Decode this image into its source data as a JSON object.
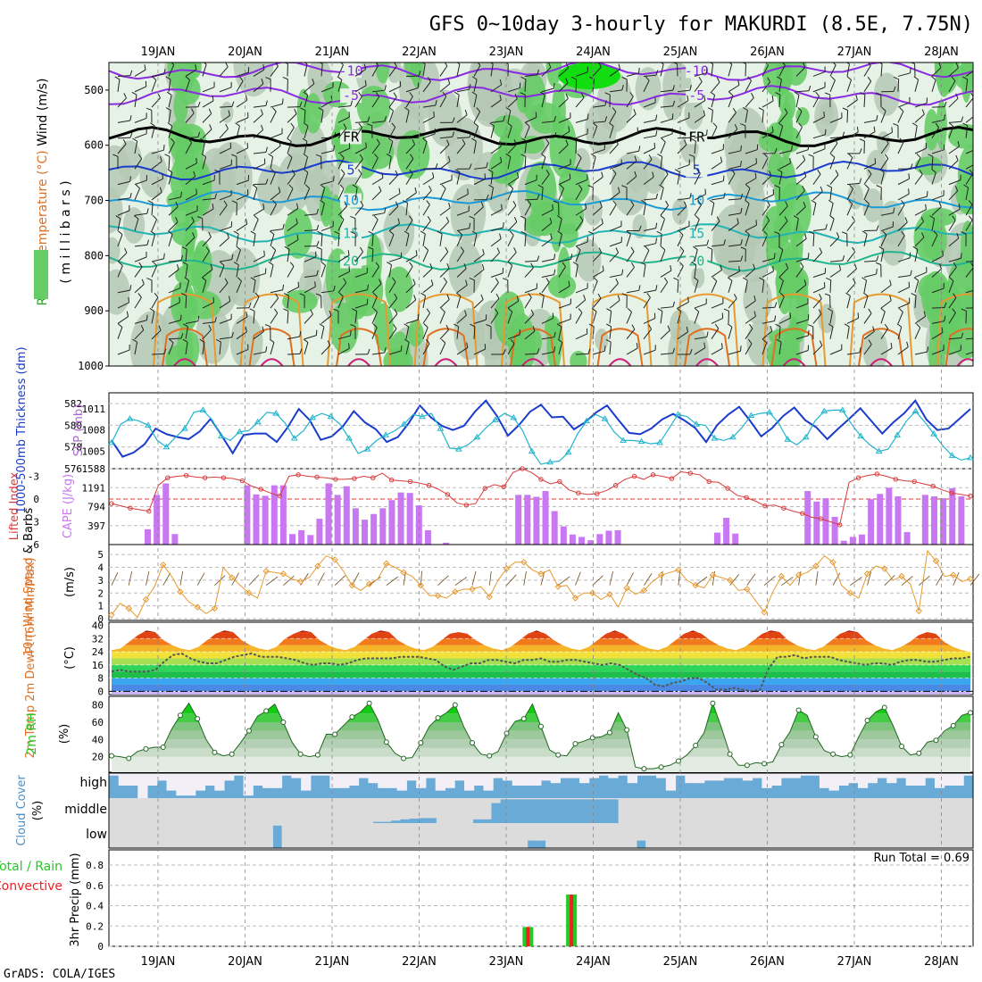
{
  "title": "GFS 0~10day 3-hourly for MAKURDI (8.5E, 7.75N)",
  "footer": "GrADS: COLA/IGES",
  "days": [
    "19JAN",
    "20JAN",
    "21JAN",
    "22JAN",
    "23JAN",
    "24JAN",
    "25JAN",
    "26JAN",
    "27JAN",
    "28JAN"
  ],
  "colors": {
    "wind_rh_bg": "#e6f2e6",
    "rh_mid": "#b4c8b4",
    "rh_high": "#66cc66",
    "rh_top": "#11dd11",
    "slp": "#1a3ccc",
    "thickness": "#22b4cc",
    "lifted": "#d83a3a",
    "cape": "#c878f0",
    "wind10": "#e69a30",
    "dewpt": "#555555",
    "rh2m": "#22cc22",
    "cloud": "#6aaad6",
    "cloud_gap": "#f2f0f6",
    "precip_total": "#22cc22",
    "precip_conv": "#ee2222"
  },
  "chart_data": [
    {
      "type": "heatmap",
      "name": "upper-air",
      "ylabel_parts": [
        {
          "text": "RH (%)",
          "color": "#22aa22"
        },
        {
          "text": "Temperature (°C)",
          "color": "#e07020"
        },
        {
          "text": "Wind (m/s)",
          "color": "#000000"
        }
      ],
      "ylabel2": "( m i l l i b a r s )",
      "yticks": [
        500,
        600,
        700,
        800,
        900,
        1000
      ],
      "ylim": [
        450,
        1000
      ],
      "isotherms": [
        {
          "label": "-10",
          "p": 465,
          "color": "#8a2be2"
        },
        {
          "label": "-5",
          "p": 510,
          "color": "#8a2be2"
        },
        {
          "label": "FR",
          "p": 585,
          "color": "#000000"
        },
        {
          "label": "5",
          "p": 645,
          "color": "#1a3ccc"
        },
        {
          "label": "10",
          "p": 700,
          "color": "#1a9ad6"
        },
        {
          "label": "15",
          "p": 760,
          "color": "#22b4b4"
        },
        {
          "label": "20",
          "p": 810,
          "color": "#22b48c"
        }
      ]
    },
    {
      "type": "line",
      "name": "slp-thickness",
      "ylabel_left": "1000-500mb Thickness (dm)",
      "ylabel_right": "SLP (mb)",
      "yticks_left": [
        576,
        578,
        580,
        582
      ],
      "yticks_right": [
        1005,
        1008,
        1011
      ],
      "ylim_left": [
        576,
        583
      ],
      "ylim_right": [
        1002.5,
        1013.3
      ],
      "series": [
        {
          "name": "SLP (mb)",
          "axis": "right",
          "values": [
            1006.5,
            1004.2,
            1004.8,
            1006.0,
            1008.2,
            1007.4,
            1007.0,
            1006.7,
            1007.8,
            1009.6,
            1007.2,
            1004.7,
            1007.3,
            1007.5,
            1007.5,
            1006.3,
            1008.4,
            1011.0,
            1009.4,
            1006.6,
            1007.1,
            1008.5,
            1010.7,
            1009.1,
            1008.1,
            1006.3,
            1007.0,
            1009.0,
            1011.5,
            1009.8,
            1008.6,
            1008.0,
            1008.6,
            1010.6,
            1012.2,
            1010.0,
            1007.2,
            1008.7,
            1010.6,
            1011.6,
            1009.8,
            1009.9,
            1008.1,
            1009.1,
            1010.5,
            1011.5,
            1009.5,
            1007.6,
            1007.4,
            1008.2,
            1009.5,
            1010.3,
            1009.4,
            1008.3,
            1006.3,
            1008.7,
            1010.2,
            1011.3,
            1009.3,
            1007.1,
            1008.3,
            1010.0,
            1011.2,
            1009.4,
            1008.4,
            1006.7,
            1008.2,
            1009.6,
            1011.1,
            1009.3,
            1007.5,
            1009.1,
            1010.4,
            1012.2,
            1009.5,
            1008.0,
            1008.2,
            1009.6,
            1011.0
          ]
        },
        {
          "name": "Thickness (dm)",
          "axis": "left",
          "values": [
            578.4,
            580.1,
            580.6,
            580.4,
            580.0,
            578.6,
            578.0,
            578.9,
            579.7,
            581.2,
            581.4,
            580.5,
            579.0,
            578.6,
            579.4,
            579.5,
            580.3,
            581.2,
            581.1,
            580.2,
            578.8,
            579.5,
            580.7,
            581.1,
            580.8,
            580.1,
            578.8,
            577.4,
            577.8,
            578.6,
            579.1,
            579.5,
            580.1,
            581.0,
            580.8,
            581.1,
            579.7,
            577.9,
            577.8,
            578.2,
            578.9,
            579.8,
            580.5,
            581.1,
            580.7,
            579.5,
            577.6,
            576.4,
            576.6,
            576.7,
            577.5,
            579.2,
            580.4,
            581.0,
            580.6,
            579.4,
            578.6,
            578.6,
            578.5,
            578.3,
            578.4,
            579.7,
            581.0,
            580.8,
            580.1,
            580.0,
            578.8,
            578.6,
            578.9,
            579.8,
            580.9,
            581.1,
            581.2,
            580.2,
            578.7,
            578.2,
            578.9,
            580.4,
            581.3,
            581.4,
            581.4,
            580.1,
            579.0,
            578.2,
            577.6,
            577.8,
            579.1,
            580.4,
            581.3,
            580.3,
            579.2,
            578.1,
            577.2,
            576.8,
            577.0
          ]
        }
      ]
    },
    {
      "type": "bar",
      "name": "cape-lifted-index",
      "ylabel_left": "Lifted Index",
      "ylabel_right": "CAPE (J/kg)",
      "yticks_left": [
        -3,
        0,
        3,
        6
      ],
      "yticks_right": [
        397,
        794,
        1191,
        1588
      ],
      "ylim_cape": [
        0,
        1588
      ],
      "ylim_li": [
        6,
        -4
      ],
      "cape": [
        0,
        0,
        0,
        0,
        320,
        1040,
        1280,
        220,
        0,
        0,
        0,
        0,
        0,
        0,
        0,
        1240,
        1050,
        1020,
        1240,
        1240,
        220,
        300,
        200,
        540,
        1280,
        1040,
        1220,
        760,
        520,
        640,
        760,
        930,
        1090,
        1080,
        820,
        300,
        0,
        40,
        0,
        0,
        0,
        0,
        0,
        0,
        0,
        1040,
        1040,
        1000,
        1120,
        700,
        380,
        210,
        160,
        90,
        220,
        290,
        300,
        0,
        0,
        0,
        0,
        0,
        0,
        0,
        0,
        0,
        0,
        250,
        560,
        230,
        0,
        0,
        0,
        0,
        0,
        0,
        0,
        1120,
        900,
        970,
        580,
        80,
        160,
        210,
        950,
        1060,
        1190,
        1010,
        260,
        0,
        1040,
        1010,
        970,
        1180,
        1010,
        0
      ],
      "lifted_index": [
        0.6,
        0.9,
        1.2,
        1.4,
        1.6,
        -1.8,
        -2.8,
        -3.0,
        -3.1,
        -2.9,
        -2.8,
        -2.9,
        -2.8,
        -2.7,
        -2.4,
        -1.7,
        -1.3,
        -0.8,
        -0.4,
        -3.0,
        -3.2,
        -3.0,
        -2.9,
        -2.8,
        -2.6,
        -2.6,
        -2.7,
        -3.0,
        -2.8,
        -3.4,
        -2.5,
        -2.4,
        -2.3,
        -2.1,
        -1.8,
        -1.3,
        -0.6,
        0.5,
        0.8,
        0.6,
        -1.4,
        -1.9,
        -1.6,
        -3.5,
        -4.0,
        -3.5,
        -2.6,
        -2.0,
        -2.3,
        -1.2,
        -0.8,
        -0.6,
        -0.7,
        -1.1,
        -1.8,
        -2.6,
        -3.0,
        -2.6,
        -3.2,
        -3.0,
        -2.7,
        -3.6,
        -3.4,
        -3.2,
        -2.3,
        -2.2,
        -1.4,
        -0.5,
        -0.2,
        0.3,
        0.9,
        0.8,
        1.2,
        1.6,
        1.9,
        2.4,
        2.6,
        3.0,
        3.4,
        -2.2,
        -2.8,
        -3.1,
        -3.3,
        -3.0,
        -2.6,
        -2.4,
        -2.3,
        -2.0,
        -1.7,
        -1.2,
        -0.8,
        -0.6,
        -0.4
      ]
    },
    {
      "type": "line",
      "name": "wind10m",
      "ylabel_parts": [
        {
          "text": "10m Wind",
          "color": "#e07020"
        },
        {
          "text": "Speed",
          "color": "#e07020"
        },
        {
          "text": "& Barbs",
          "color": "#000000"
        }
      ],
      "yunit": "(m/s)",
      "yticks": [
        0,
        1,
        2,
        3,
        4,
        5
      ],
      "ylim": [
        0,
        5.5
      ],
      "values": [
        0.3,
        1.2,
        0.8,
        0.1,
        1.5,
        2.5,
        4.2,
        3.3,
        2.1,
        1.3,
        0.9,
        0.4,
        0.8,
        4.0,
        3.2,
        2.6,
        2.0,
        1.6,
        3.7,
        3.6,
        3.5,
        3.1,
        2.9,
        3.2,
        4.1,
        4.9,
        4.6,
        3.7,
        2.6,
        2.2,
        2.7,
        3.1,
        4.3,
        4.0,
        3.6,
        3.3,
        2.6,
        1.8,
        1.8,
        1.6,
        2.1,
        2.3,
        2.3,
        2.5,
        1.7,
        3.0,
        3.9,
        4.4,
        4.4,
        3.8,
        3.5,
        3.8,
        2.5,
        2.6,
        1.6,
        2.0,
        2.0,
        1.5,
        1.9,
        0.9,
        2.4,
        1.9,
        2.2,
        2.9,
        3.4,
        3.6,
        3.8,
        3.0,
        2.6,
        2.4,
        3.4,
        3.2,
        3.0,
        2.2,
        2.3,
        1.4,
        0.5,
        2.1,
        3.3,
        2.6,
        3.4,
        3.6,
        4.1,
        4.9,
        4.4,
        2.6,
        2.0,
        1.6,
        3.5,
        4.1,
        3.9,
        3.0,
        3.3,
        2.7,
        0.6,
        5.3,
        4.5,
        3.3,
        3.4,
        2.9,
        3.1
      ]
    },
    {
      "type": "area",
      "name": "temp-dewpt",
      "ylabel_parts": [
        {
          "text": "2m Temp",
          "color": "#e07020"
        },
        {
          "text": "2m DewPt",
          "color": "#e07020"
        },
        {
          "text": "(6hr Min/Max)",
          "color": "#e07020"
        }
      ],
      "yunit": "(°C)",
      "yticks": [
        0,
        8,
        16,
        24,
        32,
        40
      ],
      "ylim": [
        -2,
        42
      ],
      "temp": [
        25,
        26,
        30,
        34,
        37,
        36,
        31,
        28,
        26,
        25,
        27,
        31,
        35,
        37,
        36,
        31,
        28,
        26,
        25,
        27,
        32,
        35,
        37,
        36,
        31,
        28,
        26,
        25,
        27,
        31,
        35,
        37,
        36,
        31,
        28,
        26,
        25,
        27,
        31,
        35,
        36,
        35,
        31,
        28,
        26,
        25,
        27,
        31,
        35,
        37,
        35,
        31,
        28,
        26,
        25,
        27,
        31,
        35,
        37,
        35,
        31,
        28,
        26,
        25,
        27,
        31,
        35,
        37,
        35,
        31,
        28,
        26,
        25,
        27,
        31,
        35,
        37,
        36,
        31,
        28,
        26,
        25,
        27,
        31,
        35,
        37,
        36,
        31,
        28,
        26,
        25,
        27,
        30,
        34,
        36,
        35,
        30,
        27,
        25,
        24
      ],
      "dewpt": [
        12,
        13,
        12,
        12,
        12,
        13,
        18,
        22,
        23,
        20,
        18,
        17,
        17,
        19,
        21,
        22,
        23,
        21,
        21,
        21,
        20,
        19,
        17,
        16,
        17,
        17,
        16,
        17,
        19,
        20,
        20,
        20,
        20,
        21,
        21,
        21,
        20,
        19,
        15,
        13,
        15,
        17,
        17,
        19,
        19,
        18,
        17,
        19,
        19,
        20,
        18,
        18,
        19,
        19,
        18,
        17,
        16,
        17,
        16,
        13,
        10,
        8,
        4,
        3,
        5,
        6,
        8,
        8,
        5,
        1,
        1,
        2,
        1,
        0,
        1,
        14,
        21,
        21,
        22,
        20,
        21,
        21,
        21,
        19,
        18,
        17,
        16,
        17,
        17,
        16,
        18,
        19,
        19,
        18,
        18,
        19,
        20,
        20,
        21
      ]
    },
    {
      "type": "area",
      "name": "rh2m",
      "ylabel": "2m RH",
      "yunit": "(%)",
      "yticks": [
        20,
        40,
        60,
        80
      ],
      "ylim": [
        2,
        90
      ],
      "values": [
        21,
        20,
        18,
        26,
        29,
        31,
        31,
        52,
        68,
        82,
        64,
        40,
        25,
        21,
        23,
        36,
        50,
        67,
        73,
        81,
        60,
        37,
        23,
        20,
        22,
        46,
        46,
        56,
        66,
        72,
        82,
        63,
        37,
        24,
        18,
        19,
        36,
        55,
        65,
        71,
        80,
        55,
        36,
        23,
        21,
        26,
        47,
        61,
        64,
        81,
        55,
        28,
        22,
        21,
        35,
        38,
        42,
        43,
        48,
        71,
        51,
        8,
        6,
        6,
        8,
        10,
        15,
        22,
        33,
        48,
        82,
        54,
        23,
        10,
        10,
        13,
        12,
        14,
        34,
        49,
        74,
        68,
        43,
        27,
        23,
        20,
        22,
        43,
        62,
        72,
        77,
        56,
        32,
        22,
        24,
        37,
        39,
        50,
        56,
        68,
        71
      ]
    },
    {
      "type": "bar",
      "name": "cloud-cover",
      "ylabel": "Cloud Cover",
      "yunit": "(%)",
      "levels": [
        "high",
        "middle",
        "low"
      ],
      "high": [
        90,
        50,
        50,
        0,
        50,
        70,
        30,
        10,
        10,
        30,
        50,
        30,
        70,
        90,
        10,
        50,
        40,
        40,
        90,
        80,
        30,
        90,
        90,
        40,
        40,
        50,
        80,
        60,
        40,
        40,
        30,
        70,
        40,
        80,
        30,
        40,
        70,
        30,
        50,
        30,
        80,
        70,
        50,
        50,
        50,
        70,
        60,
        80,
        80,
        60,
        80,
        90,
        80,
        90,
        60,
        90,
        90,
        80,
        30,
        90,
        60,
        60,
        70,
        70,
        80,
        80,
        70,
        80,
        40,
        50,
        80,
        80,
        90,
        90,
        40,
        30,
        50,
        60,
        40,
        60,
        80,
        60,
        80,
        50,
        50,
        80,
        40,
        50,
        50,
        90
      ],
      "middle": [
        0,
        0,
        0,
        0,
        0,
        0,
        0,
        0,
        0,
        0,
        0,
        0,
        0,
        0,
        0,
        0,
        0,
        0,
        0,
        0,
        0,
        0,
        0,
        0,
        0,
        0,
        0,
        0,
        0,
        5,
        5,
        10,
        15,
        18,
        20,
        20,
        0,
        0,
        0,
        0,
        15,
        15,
        80,
        95,
        95,
        95,
        95,
        95,
        95,
        95,
        95,
        95,
        95,
        95,
        95,
        95,
        0,
        0,
        0,
        0,
        0,
        0,
        0,
        0,
        0,
        0,
        0,
        0,
        0,
        0,
        0,
        0,
        0,
        0,
        0,
        0,
        0,
        0,
        0,
        0,
        0,
        0,
        0,
        0,
        0,
        0,
        0,
        0,
        0,
        0,
        0,
        0,
        0,
        0,
        0
      ],
      "low": [
        0,
        0,
        0,
        0,
        0,
        0,
        0,
        0,
        0,
        0,
        0,
        0,
        0,
        0,
        0,
        0,
        0,
        0,
        90,
        0,
        0,
        0,
        0,
        0,
        0,
        0,
        0,
        0,
        0,
        0,
        0,
        0,
        0,
        0,
        0,
        0,
        0,
        0,
        0,
        0,
        0,
        0,
        0,
        0,
        0,
        0,
        30,
        30,
        0,
        0,
        0,
        0,
        0,
        0,
        0,
        0,
        0,
        0,
        30,
        0,
        0,
        0,
        0,
        0,
        0,
        0,
        0,
        0,
        0,
        0,
        0,
        0,
        0,
        0,
        0,
        0,
        0,
        0,
        0,
        0,
        0,
        0,
        0,
        0,
        0,
        0,
        0,
        0,
        0,
        0,
        0,
        0,
        0,
        0,
        0
      ]
    },
    {
      "type": "bar",
      "name": "precip",
      "ylabel": "3hr Precip (mm)",
      "legend": [
        {
          "text": "Total / Rain",
          "color": "#22cc22"
        },
        {
          "text": "Convective",
          "color": "#ee2222"
        }
      ],
      "run_total": "Run Total = 0.69",
      "yticks": [
        0,
        0.2,
        0.4,
        0.6,
        0.8
      ],
      "ylim": [
        0,
        0.95
      ],
      "bars": [
        {
          "day_offset": 4.25,
          "total": 0.19,
          "convective": 0.19
        },
        {
          "day_offset": 4.75,
          "total": 0.51,
          "convective": 0.51
        }
      ]
    }
  ]
}
